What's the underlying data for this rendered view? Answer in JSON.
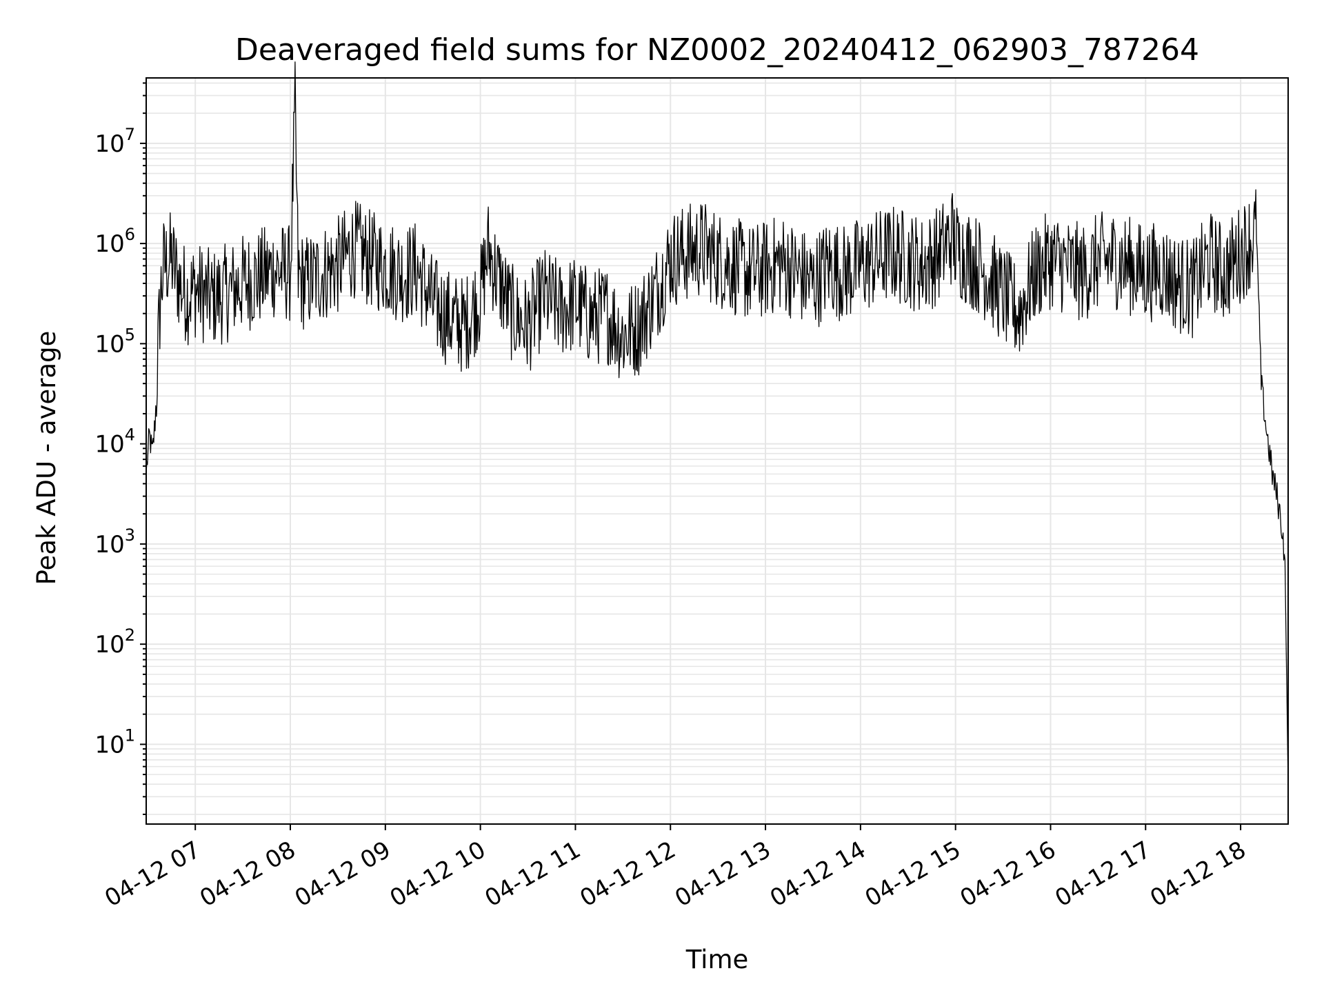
{
  "chart_data": {
    "type": "line",
    "title": "Deaveraged field sums for NZ0002_20240412_062903_787264",
    "xlabel": "Time",
    "ylabel": "Peak ADU - average",
    "yscale": "log",
    "ylim": [
      1.6,
      45000000
    ],
    "xlim": [
      "2024-04-12 06:29",
      "2024-04-12 18:30"
    ],
    "grid": true,
    "line_color": "#000000",
    "x_ticks": [
      "04-12 07",
      "04-12 08",
      "04-12 09",
      "04-12 10",
      "04-12 11",
      "04-12 12",
      "04-12 13",
      "04-12 14",
      "04-12 15",
      "04-12 16",
      "04-12 17",
      "04-12 18"
    ],
    "y_ticks": [
      {
        "base": "10",
        "exp": "1",
        "value": 10
      },
      {
        "base": "10",
        "exp": "2",
        "value": 100
      },
      {
        "base": "10",
        "exp": "3",
        "value": 1000
      },
      {
        "base": "10",
        "exp": "4",
        "value": 10000
      },
      {
        "base": "10",
        "exp": "5",
        "value": 100000
      },
      {
        "base": "10",
        "exp": "6",
        "value": 1000000
      },
      {
        "base": "10",
        "exp": "7",
        "value": 10000000
      }
    ],
    "series": [
      {
        "x": [
          "06:29",
          "06:31",
          "06:33",
          "06:35",
          "06:36",
          "06:38",
          "06:40",
          "06:45",
          "06:50",
          "06:55",
          "07:00",
          "07:10",
          "07:20",
          "07:30",
          "07:40",
          "07:50",
          "08:00",
          "08:03",
          "08:05",
          "08:10",
          "08:20",
          "08:30",
          "08:40",
          "08:50",
          "09:00",
          "09:10",
          "09:20",
          "09:30",
          "09:40",
          "09:50",
          "10:00",
          "10:05",
          "10:10",
          "10:20",
          "10:30",
          "10:40",
          "10:50",
          "11:00",
          "11:10",
          "11:20",
          "11:30",
          "11:40",
          "11:50",
          "12:00",
          "12:10",
          "12:20",
          "12:30",
          "12:40",
          "12:50",
          "13:00",
          "13:10",
          "13:20",
          "13:30",
          "13:40",
          "13:50",
          "14:00",
          "14:10",
          "14:20",
          "14:30",
          "14:40",
          "14:50",
          "14:58",
          "15:00",
          "15:10",
          "15:20",
          "15:30",
          "15:40",
          "15:50",
          "16:00",
          "16:10",
          "16:20",
          "16:30",
          "16:40",
          "16:50",
          "17:00",
          "17:10",
          "17:20",
          "17:30",
          "17:40",
          "17:50",
          "18:00",
          "18:10",
          "18:13",
          "18:16",
          "18:20",
          "18:23",
          "18:26",
          "18:28",
          "18:30"
        ],
        "y": [
          5000,
          12000,
          8000,
          20000,
          60000,
          300000,
          600000,
          700000,
          400000,
          300000,
          350000,
          280000,
          320000,
          400000,
          450000,
          550000,
          500000,
          21000000,
          450000,
          400000,
          500000,
          600000,
          900000,
          700000,
          600000,
          500000,
          550000,
          250000,
          180000,
          150000,
          300000,
          900000,
          500000,
          200000,
          150000,
          300000,
          220000,
          250000,
          180000,
          200000,
          120000,
          150000,
          300000,
          700000,
          800000,
          900000,
          700000,
          600000,
          500000,
          550000,
          650000,
          500000,
          400000,
          600000,
          500000,
          600000,
          700000,
          800000,
          700000,
          600000,
          800000,
          1200000,
          900000,
          700000,
          500000,
          300000,
          200000,
          500000,
          700000,
          600000,
          500000,
          650000,
          700000,
          600000,
          500000,
          550000,
          400000,
          350000,
          700000,
          500000,
          800000,
          1300000,
          40000,
          15000,
          5000,
          3000,
          1500,
          700,
          4
        ]
      }
    ]
  }
}
